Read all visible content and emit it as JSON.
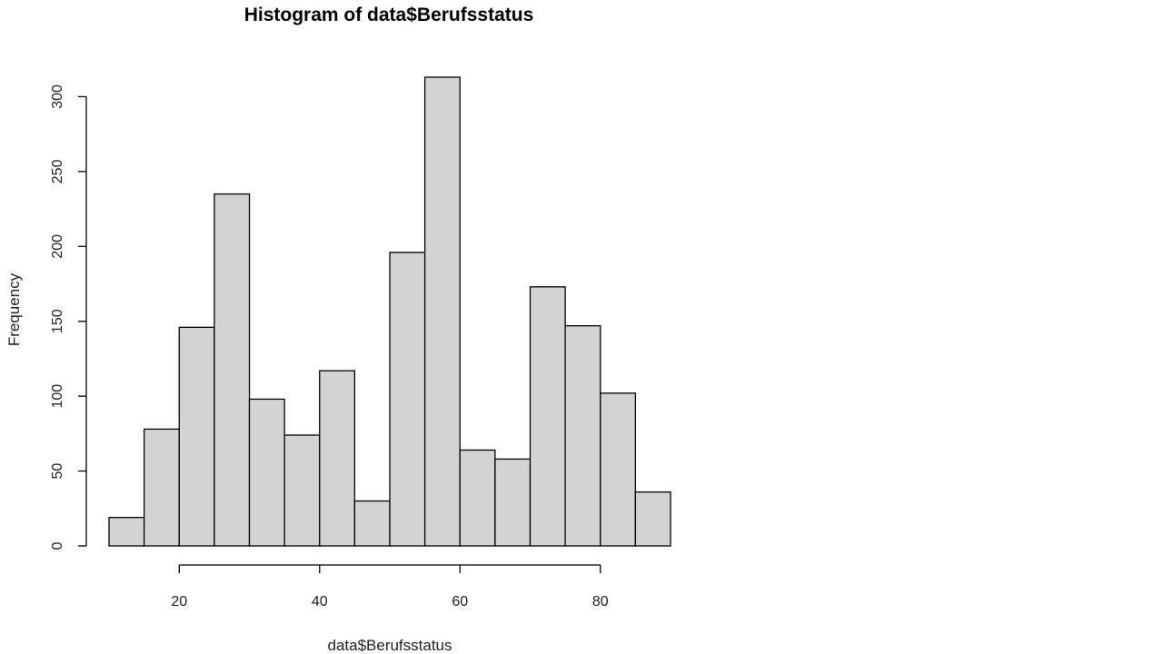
{
  "chart_data": {
    "type": "bar",
    "title": "Histogram of data$Berufsstatus",
    "xlabel": "data$Berufsstatus",
    "ylabel": "Frequency",
    "bins": [
      {
        "start": 10,
        "end": 15,
        "count": 19
      },
      {
        "start": 15,
        "end": 20,
        "count": 78
      },
      {
        "start": 20,
        "end": 25,
        "count": 146
      },
      {
        "start": 25,
        "end": 30,
        "count": 235
      },
      {
        "start": 30,
        "end": 35,
        "count": 98
      },
      {
        "start": 35,
        "end": 40,
        "count": 74
      },
      {
        "start": 40,
        "end": 45,
        "count": 117
      },
      {
        "start": 45,
        "end": 50,
        "count": 30
      },
      {
        "start": 50,
        "end": 55,
        "count": 196
      },
      {
        "start": 55,
        "end": 60,
        "count": 313
      },
      {
        "start": 60,
        "end": 65,
        "count": 64
      },
      {
        "start": 65,
        "end": 70,
        "count": 58
      },
      {
        "start": 70,
        "end": 75,
        "count": 173
      },
      {
        "start": 75,
        "end": 80,
        "count": 147
      },
      {
        "start": 80,
        "end": 85,
        "count": 102
      },
      {
        "start": 85,
        "end": 90,
        "count": 36
      }
    ],
    "xlim": [
      10,
      90
    ],
    "ylim": [
      0,
      313
    ],
    "x_ticks": [
      20,
      40,
      60,
      80
    ],
    "y_ticks": [
      0,
      50,
      100,
      150,
      200,
      250,
      300
    ],
    "grid": false,
    "colors": {
      "bar_fill": "#d3d3d3",
      "bar_stroke": "#000000"
    }
  }
}
